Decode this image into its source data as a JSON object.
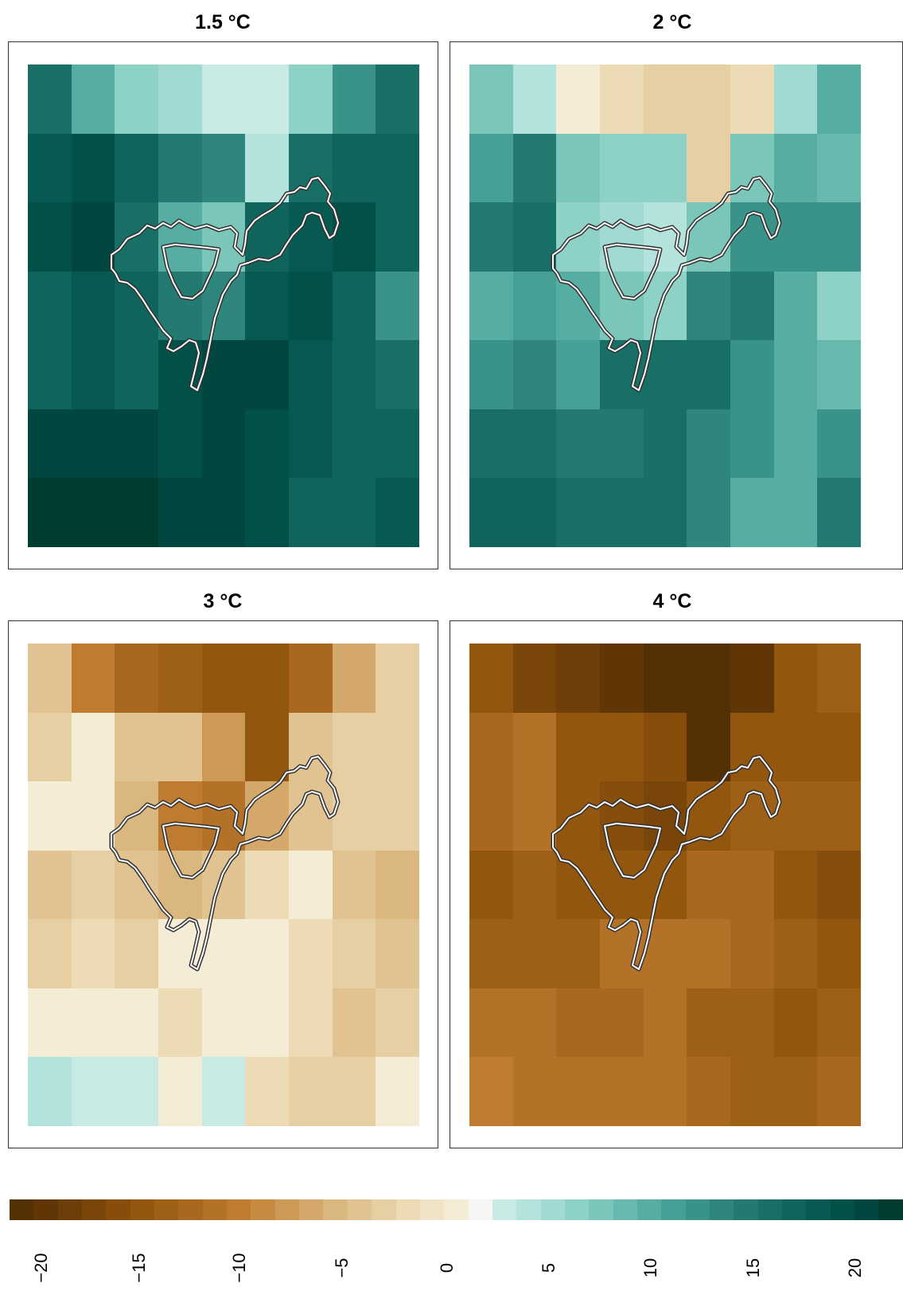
{
  "panels": [
    {
      "title": "1.5 °C",
      "grid": [
        [
          14.0,
          9.0,
          5.0,
          4.0,
          2.0,
          2.0,
          6.0,
          11.0,
          14.0
        ],
        [
          17.0,
          18.0,
          15.0,
          13.0,
          12.0,
          3.0,
          14.0,
          16.0,
          16.0
        ],
        [
          18.0,
          19.0,
          14.0,
          9.0,
          7.0,
          15.0,
          17.0,
          18.0,
          16.0
        ],
        [
          15.0,
          17.0,
          15.0,
          13.0,
          12.0,
          17.0,
          18.0,
          16.0,
          11.0
        ],
        [
          16.0,
          17.0,
          16.0,
          18.0,
          19.0,
          19.0,
          17.0,
          16.0,
          14.0
        ],
        [
          19.0,
          19.0,
          19.0,
          18.0,
          19.0,
          18.0,
          17.0,
          15.0,
          16.0
        ],
        [
          21.0,
          20.0,
          20.0,
          19.0,
          19.0,
          18.0,
          16.0,
          16.0,
          17.0
        ]
      ]
    },
    {
      "title": "2 °C",
      "grid": [
        [
          7.0,
          3.0,
          0.0,
          -2.0,
          -3.0,
          -3.0,
          -2.0,
          4.0,
          9.0
        ],
        [
          10.0,
          13.0,
          7.0,
          6.0,
          5.0,
          -3.0,
          7.0,
          9.0,
          8.0
        ],
        [
          13.0,
          14.0,
          6.0,
          4.0,
          3.0,
          7.0,
          11.0,
          11.0,
          11.0
        ],
        [
          9.0,
          10.0,
          9.0,
          7.0,
          6.0,
          12.0,
          13.0,
          9.0,
          5.0
        ],
        [
          11.0,
          12.0,
          10.0,
          14.0,
          14.0,
          14.0,
          11.0,
          9.0,
          8.0
        ],
        [
          14.0,
          14.0,
          13.0,
          13.0,
          14.0,
          12.0,
          11.0,
          9.0,
          11.0
        ],
        [
          16.0,
          15.0,
          14.0,
          14.0,
          14.0,
          12.0,
          9.0,
          9.0,
          13.0
        ]
      ]
    },
    {
      "title": "3 °C",
      "grid": [
        [
          -5.0,
          -10.0,
          -12.0,
          -13.0,
          -14.0,
          -14.0,
          -12.0,
          -7.0,
          -3.0
        ],
        [
          -3.0,
          0.0,
          -4.0,
          -5.0,
          -8.0,
          -14.0,
          -5.0,
          -3.0,
          -3.0
        ],
        [
          0.0,
          0.0,
          -6.0,
          -10.0,
          -11.0,
          -7.0,
          -4.0,
          -3.0,
          -3.0
        ],
        [
          -4.0,
          -3.0,
          -4.0,
          -6.0,
          -5.0,
          -2.0,
          0.0,
          -4.0,
          -6.0
        ],
        [
          -3.0,
          -2.0,
          -3.0,
          0.0,
          0.0,
          0.0,
          -2.0,
          -3.0,
          -5.0
        ],
        [
          0.0,
          0.0,
          0.0,
          -2.0,
          0.0,
          0.0,
          -2.0,
          -4.0,
          -3.0
        ],
        [
          3.0,
          2.0,
          2.0,
          0.0,
          2.0,
          -2.0,
          -3.0,
          -3.0,
          0.0
        ]
      ]
    },
    {
      "title": "4 °C",
      "grid": [
        [
          -14.0,
          -17.0,
          -18.0,
          -19.0,
          -20.0,
          -20.0,
          -19.0,
          -15.0,
          -13.0
        ],
        [
          -12.0,
          -11.0,
          -14.0,
          -15.0,
          -16.0,
          -20.0,
          -15.0,
          -14.0,
          -14.0
        ],
        [
          -12.0,
          -11.0,
          -15.0,
          -16.0,
          -17.0,
          -14.0,
          -13.0,
          -13.0,
          -13.0
        ],
        [
          -14.0,
          -13.0,
          -14.0,
          -15.0,
          -14.0,
          -12.0,
          -12.0,
          -14.0,
          -16.0
        ],
        [
          -13.0,
          -13.0,
          -13.0,
          -11.0,
          -11.0,
          -11.0,
          -12.0,
          -13.0,
          -14.0
        ],
        [
          -11.0,
          -11.0,
          -12.0,
          -12.0,
          -11.0,
          -13.0,
          -13.0,
          -14.0,
          -13.0
        ],
        [
          -10.0,
          -11.0,
          -11.0,
          -11.0,
          -11.0,
          -12.0,
          -13.0,
          -13.0,
          -12.0
        ]
      ]
    }
  ],
  "legend": {
    "min": -20,
    "max": 20,
    "ticks": [
      "−20",
      "−15",
      "−10",
      "−5",
      "0",
      "5",
      "10",
      "15",
      "20"
    ],
    "colors": [
      "#543005",
      "#603606",
      "#6d3e08",
      "#7a4509",
      "#864d0b",
      "#93560f",
      "#9e5f17",
      "#a9671f",
      "#b47128",
      "#bf7c30",
      "#c68a41",
      "#cd9a56",
      "#d4a86b",
      "#dab77f",
      "#e0c390",
      "#e6d0a3",
      "#ecdbb5",
      "#f1e4c6",
      "#f5ecd6",
      "#f5f5f5",
      "#c7eae5",
      "#b4e2dc",
      "#a1dad2",
      "#8ed1c6",
      "#7bc6ba",
      "#67b9ad",
      "#56ada1",
      "#47a095",
      "#3a9389",
      "#2e867d",
      "#237a71",
      "#186f66",
      "#0f645b",
      "#075a51",
      "#025148",
      "#01473f",
      "#003c30"
    ]
  }
}
